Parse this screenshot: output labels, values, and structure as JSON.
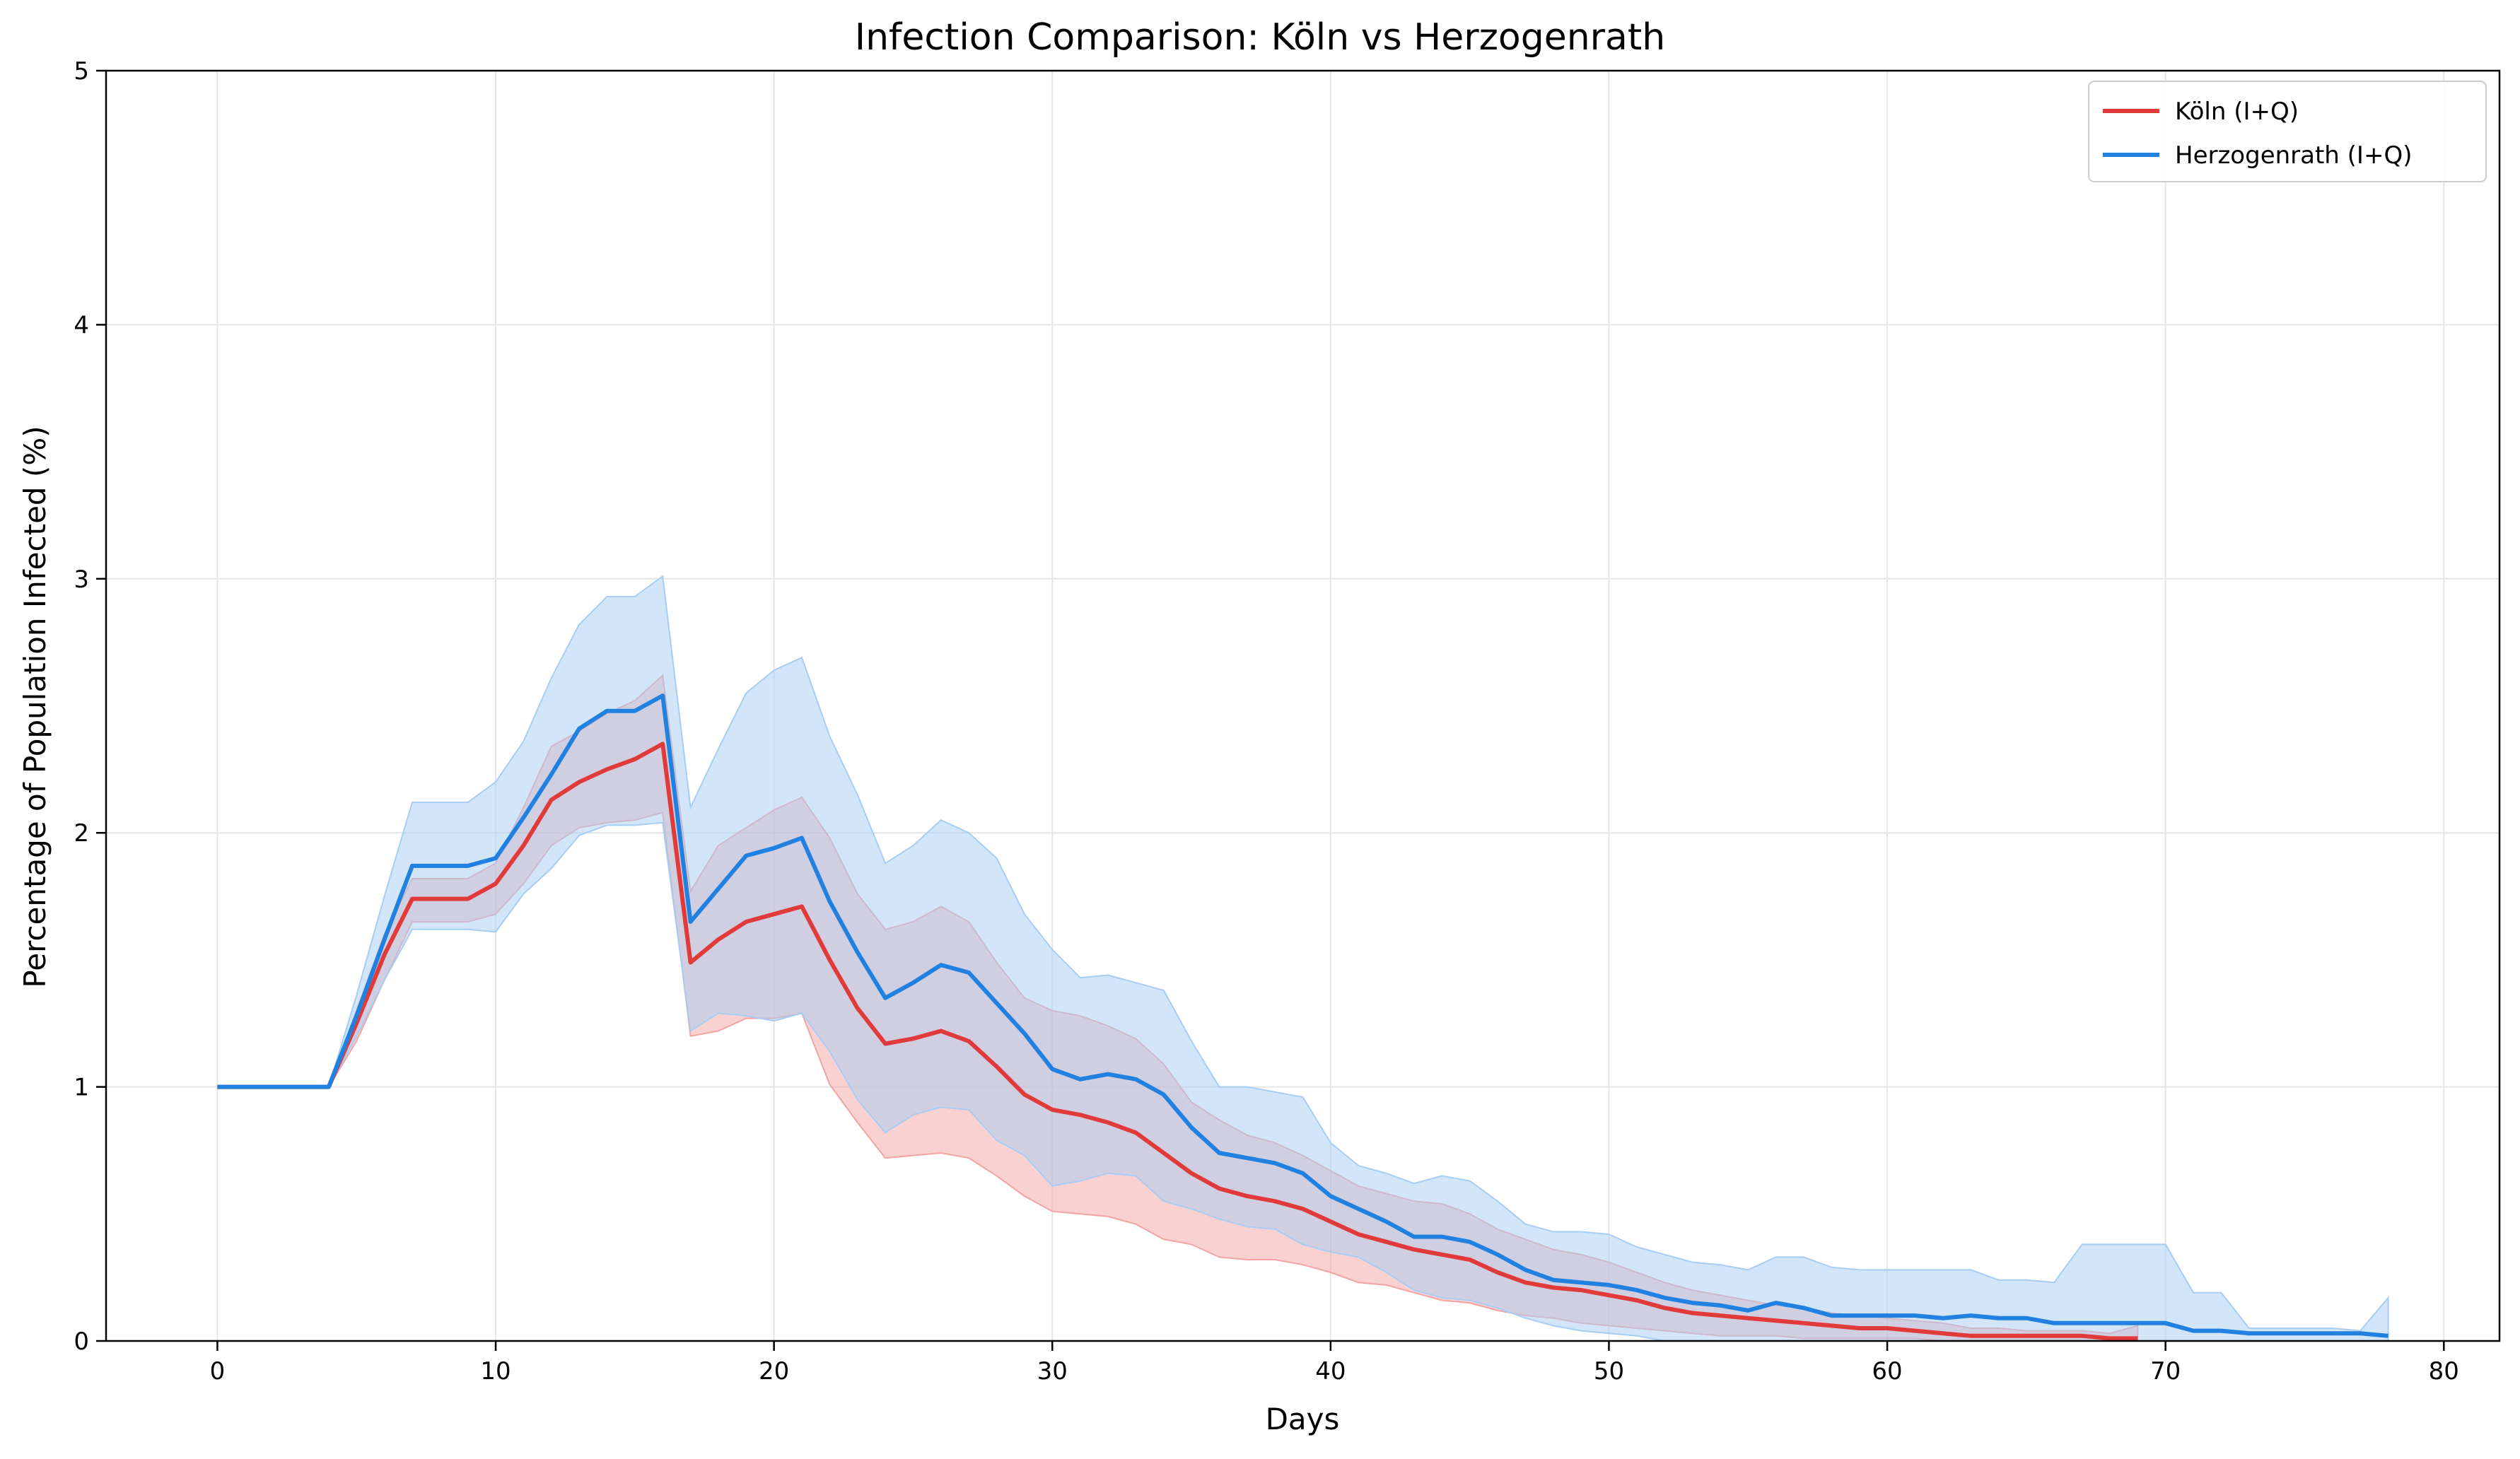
{
  "chart_data": {
    "type": "line",
    "title": "Infection Comparison: Köln vs Herzogenrath",
    "xlabel": "Days",
    "ylabel": "Percentage of Population Infected (%)",
    "xlim": [
      -4,
      82
    ],
    "ylim": [
      0,
      5
    ],
    "xticks": [
      0,
      10,
      20,
      30,
      40,
      50,
      60,
      70,
      80
    ],
    "yticks": [
      0,
      1,
      2,
      3,
      4,
      5
    ],
    "grid": true,
    "legend_position": "top-right",
    "series": [
      {
        "name": "Köln (I+Q)",
        "color": "#e03a3a",
        "band_color": "#f4a3a3",
        "x": [
          0,
          1,
          2,
          3,
          4,
          5,
          6,
          7,
          8,
          9,
          10,
          11,
          12,
          13,
          14,
          15,
          16,
          17,
          18,
          19,
          20,
          21,
          22,
          23,
          24,
          25,
          26,
          27,
          28,
          29,
          30,
          31,
          32,
          33,
          34,
          35,
          36,
          37,
          38,
          39,
          40,
          41,
          42,
          43,
          44,
          45,
          46,
          47,
          48,
          49,
          50,
          51,
          52,
          53,
          54,
          55,
          56,
          57,
          58,
          59,
          60,
          61,
          62,
          63,
          64,
          65,
          66,
          67,
          68,
          69
        ],
        "values": [
          1.0,
          1.0,
          1.0,
          1.0,
          1.0,
          1.25,
          1.52,
          1.74,
          1.74,
          1.74,
          1.8,
          1.95,
          2.13,
          2.2,
          2.25,
          2.29,
          2.35,
          1.49,
          1.58,
          1.65,
          1.68,
          1.71,
          1.5,
          1.31,
          1.17,
          1.19,
          1.22,
          1.18,
          1.08,
          0.97,
          0.91,
          0.89,
          0.86,
          0.82,
          0.74,
          0.66,
          0.6,
          0.57,
          0.55,
          0.52,
          0.47,
          0.42,
          0.39,
          0.36,
          0.34,
          0.32,
          0.27,
          0.23,
          0.21,
          0.2,
          0.18,
          0.16,
          0.13,
          0.11,
          0.1,
          0.09,
          0.08,
          0.07,
          0.06,
          0.05,
          0.05,
          0.04,
          0.03,
          0.02,
          0.02,
          0.02,
          0.02,
          0.02,
          0.01,
          0.01
        ],
        "lower": [
          1.0,
          1.0,
          1.0,
          1.0,
          1.0,
          1.18,
          1.42,
          1.65,
          1.65,
          1.65,
          1.68,
          1.8,
          1.95,
          2.02,
          2.04,
          2.05,
          2.08,
          1.2,
          1.22,
          1.27,
          1.27,
          1.29,
          1.01,
          0.86,
          0.72,
          0.73,
          0.74,
          0.72,
          0.65,
          0.57,
          0.51,
          0.5,
          0.49,
          0.46,
          0.4,
          0.38,
          0.33,
          0.32,
          0.32,
          0.3,
          0.27,
          0.23,
          0.22,
          0.19,
          0.16,
          0.15,
          0.12,
          0.1,
          0.09,
          0.07,
          0.06,
          0.05,
          0.04,
          0.03,
          0.02,
          0.02,
          0.02,
          0.01,
          0.01,
          0.01,
          0.01,
          0.01,
          0.0,
          0.0,
          0.0,
          0.0,
          0.0,
          0.0,
          0.0,
          0.0
        ],
        "upper": [
          1.0,
          1.0,
          1.0,
          1.0,
          1.0,
          1.3,
          1.6,
          1.82,
          1.82,
          1.82,
          1.88,
          2.1,
          2.34,
          2.4,
          2.47,
          2.52,
          2.62,
          1.77,
          1.95,
          2.02,
          2.09,
          2.14,
          1.98,
          1.76,
          1.62,
          1.65,
          1.71,
          1.65,
          1.49,
          1.35,
          1.3,
          1.28,
          1.24,
          1.19,
          1.09,
          0.94,
          0.87,
          0.81,
          0.78,
          0.73,
          0.67,
          0.61,
          0.58,
          0.55,
          0.54,
          0.5,
          0.44,
          0.4,
          0.36,
          0.34,
          0.31,
          0.27,
          0.23,
          0.2,
          0.18,
          0.16,
          0.14,
          0.13,
          0.11,
          0.1,
          0.09,
          0.08,
          0.07,
          0.05,
          0.05,
          0.04,
          0.04,
          0.04,
          0.03,
          0.06
        ]
      },
      {
        "name": "Herzogenrath (I+Q)",
        "color": "#2181e0",
        "band_color": "#a7cdf4",
        "x": [
          0,
          1,
          2,
          3,
          4,
          5,
          6,
          7,
          8,
          9,
          10,
          11,
          12,
          13,
          14,
          15,
          16,
          17,
          18,
          19,
          20,
          21,
          22,
          23,
          24,
          25,
          26,
          27,
          28,
          29,
          30,
          31,
          32,
          33,
          34,
          35,
          36,
          37,
          38,
          39,
          40,
          41,
          42,
          43,
          44,
          45,
          46,
          47,
          48,
          49,
          50,
          51,
          52,
          53,
          54,
          55,
          56,
          57,
          58,
          59,
          60,
          61,
          62,
          63,
          64,
          65,
          66,
          67,
          68,
          69,
          70,
          71,
          72,
          73,
          74,
          75,
          76,
          77,
          78
        ],
        "values": [
          1.0,
          1.0,
          1.0,
          1.0,
          1.0,
          1.28,
          1.58,
          1.87,
          1.87,
          1.87,
          1.9,
          2.06,
          2.23,
          2.41,
          2.48,
          2.48,
          2.54,
          1.65,
          1.78,
          1.91,
          1.94,
          1.98,
          1.73,
          1.53,
          1.35,
          1.41,
          1.48,
          1.45,
          1.33,
          1.21,
          1.07,
          1.03,
          1.05,
          1.03,
          0.97,
          0.84,
          0.74,
          0.72,
          0.7,
          0.66,
          0.57,
          0.52,
          0.47,
          0.41,
          0.41,
          0.39,
          0.34,
          0.28,
          0.24,
          0.23,
          0.22,
          0.2,
          0.17,
          0.15,
          0.14,
          0.12,
          0.15,
          0.13,
          0.1,
          0.1,
          0.1,
          0.1,
          0.09,
          0.1,
          0.09,
          0.09,
          0.07,
          0.07,
          0.07,
          0.07,
          0.07,
          0.04,
          0.04,
          0.03,
          0.03,
          0.03,
          0.03,
          0.03,
          0.02
        ],
        "lower": [
          1.0,
          1.0,
          1.0,
          1.0,
          1.0,
          1.2,
          1.42,
          1.62,
          1.62,
          1.62,
          1.61,
          1.76,
          1.86,
          1.99,
          2.03,
          2.03,
          2.04,
          1.22,
          1.29,
          1.28,
          1.26,
          1.29,
          1.14,
          0.95,
          0.82,
          0.89,
          0.92,
          0.91,
          0.79,
          0.73,
          0.61,
          0.63,
          0.66,
          0.65,
          0.55,
          0.52,
          0.48,
          0.45,
          0.44,
          0.38,
          0.35,
          0.33,
          0.27,
          0.2,
          0.17,
          0.16,
          0.13,
          0.09,
          0.06,
          0.04,
          0.03,
          0.02,
          0.0,
          0.0,
          0.0,
          0.0,
          0.0,
          0.0,
          0.0,
          0.0,
          0.0,
          0.0,
          0.0,
          0.0,
          0.0,
          0.0,
          0.0,
          0.0,
          0.0,
          0.0,
          0.0,
          0.0,
          0.0,
          0.0,
          0.0,
          0.0,
          0.0,
          0.0,
          0.0
        ],
        "upper": [
          1.0,
          1.0,
          1.0,
          1.0,
          1.0,
          1.36,
          1.75,
          2.12,
          2.12,
          2.12,
          2.2,
          2.36,
          2.61,
          2.82,
          2.93,
          2.93,
          3.01,
          2.1,
          2.33,
          2.55,
          2.64,
          2.69,
          2.38,
          2.15,
          1.88,
          1.95,
          2.05,
          2.0,
          1.9,
          1.68,
          1.54,
          1.43,
          1.44,
          1.41,
          1.38,
          1.18,
          1.0,
          1.0,
          0.98,
          0.96,
          0.78,
          0.69,
          0.66,
          0.62,
          0.65,
          0.63,
          0.55,
          0.46,
          0.43,
          0.43,
          0.42,
          0.37,
          0.34,
          0.31,
          0.3,
          0.28,
          0.33,
          0.33,
          0.29,
          0.28,
          0.28,
          0.28,
          0.28,
          0.28,
          0.24,
          0.24,
          0.23,
          0.38,
          0.38,
          0.38,
          0.38,
          0.19,
          0.19,
          0.05,
          0.05,
          0.05,
          0.05,
          0.04,
          0.17
        ]
      }
    ]
  }
}
